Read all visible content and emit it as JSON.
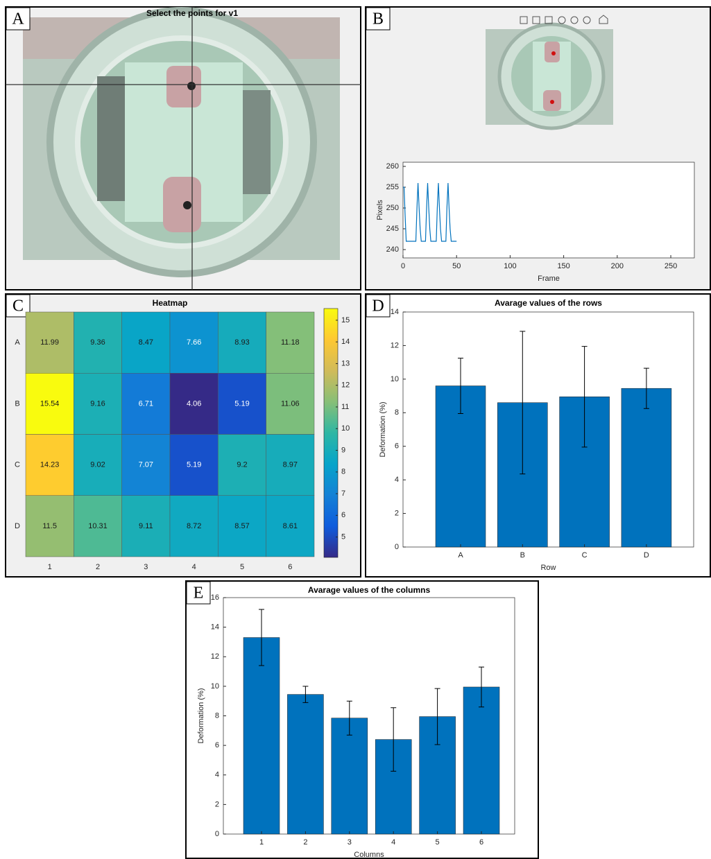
{
  "panel_labels": [
    "A",
    "B",
    "C",
    "D",
    "E"
  ],
  "photo_title": "Select the points for v1",
  "chart_data": [
    {
      "type": "line",
      "xlabel": "Frame",
      "ylabel": "Pixels",
      "x": [
        0,
        1,
        2,
        3,
        5,
        12,
        13,
        14,
        15,
        16,
        17,
        21,
        22,
        23,
        24,
        25,
        26,
        31,
        32,
        33,
        34,
        35,
        36,
        40,
        41,
        42,
        43,
        44,
        45,
        50
      ],
      "values": [
        255,
        255,
        248,
        242,
        242,
        242,
        250,
        256,
        250,
        245,
        242,
        242,
        250,
        256,
        250,
        245,
        242,
        242,
        250,
        256,
        250,
        245,
        242,
        242,
        250,
        256,
        250,
        245,
        242,
        242
      ],
      "color": "#0072bd",
      "xlim": [
        0,
        272
      ],
      "ylim": [
        238,
        261
      ],
      "xticks": [
        0,
        50,
        100,
        150,
        200,
        250
      ],
      "yticks": [
        240,
        245,
        250,
        255,
        260
      ]
    },
    {
      "type": "heatmap",
      "title": "Heatmap",
      "rows": [
        "A",
        "B",
        "C",
        "D"
      ],
      "columns": [
        "1",
        "2",
        "3",
        "4",
        "5",
        "6"
      ],
      "values": [
        [
          11.99,
          9.36,
          8.47,
          7.66,
          8.93,
          11.18
        ],
        [
          15.54,
          9.16,
          6.71,
          4.06,
          5.19,
          11.06
        ],
        [
          14.23,
          9.02,
          7.07,
          5.19,
          9.2,
          8.97
        ],
        [
          11.5,
          10.31,
          9.11,
          8.72,
          8.57,
          8.61
        ]
      ],
      "colormap": "parula",
      "clim": [
        4.06,
        15.54
      ],
      "cticks": [
        5,
        6,
        7,
        8,
        9,
        10,
        11,
        12,
        13,
        14,
        15
      ]
    },
    {
      "type": "bar",
      "title": "Avarage values of the rows",
      "xlabel": "Row",
      "ylabel": "Deformation (%)",
      "categories": [
        "A",
        "B",
        "C",
        "D"
      ],
      "values": [
        9.6,
        8.6,
        8.95,
        9.45
      ],
      "errors": [
        1.65,
        4.25,
        3.0,
        1.2
      ],
      "color": "#0072bd",
      "ylim": [
        0,
        14
      ],
      "yticks": [
        0,
        2,
        4,
        6,
        8,
        10,
        12,
        14
      ]
    },
    {
      "type": "bar",
      "title": "Avarage values of the columns",
      "xlabel": "Columns",
      "ylabel": "Deformation (%)",
      "categories": [
        "1",
        "2",
        "3",
        "4",
        "5",
        "6"
      ],
      "values": [
        13.3,
        9.45,
        7.85,
        6.4,
        7.95,
        9.95
      ],
      "errors": [
        1.9,
        0.55,
        1.15,
        2.15,
        1.9,
        1.35
      ],
      "color": "#0072bd",
      "ylim": [
        0,
        16
      ],
      "yticks": [
        0,
        2,
        4,
        6,
        8,
        10,
        12,
        14,
        16
      ]
    }
  ]
}
